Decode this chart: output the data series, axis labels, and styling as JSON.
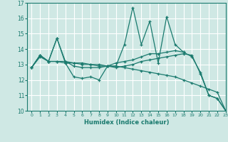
{
  "background_color": "#cfe8e4",
  "grid_color": "#ffffff",
  "line_color": "#1a7a6e",
  "xlabel": "Humidex (Indice chaleur)",
  "xlim": [
    -0.5,
    23
  ],
  "ylim": [
    10,
    17
  ],
  "xticks": [
    0,
    1,
    2,
    3,
    4,
    5,
    6,
    7,
    8,
    9,
    10,
    11,
    12,
    13,
    14,
    15,
    16,
    17,
    18,
    19,
    20,
    21,
    22,
    23
  ],
  "yticks": [
    10,
    11,
    12,
    13,
    14,
    15,
    16,
    17
  ],
  "series": [
    [
      12.8,
      13.6,
      13.2,
      14.7,
      13.1,
      12.2,
      12.1,
      12.2,
      12.0,
      12.9,
      12.9,
      14.3,
      16.7,
      14.3,
      15.8,
      13.1,
      16.1,
      14.3,
      13.8,
      null,
      null,
      null,
      null,
      null
    ],
    [
      12.8,
      13.5,
      13.2,
      13.2,
      13.2,
      12.9,
      12.8,
      12.8,
      12.8,
      12.9,
      13.1,
      13.2,
      13.3,
      13.5,
      13.7,
      13.7,
      13.8,
      13.9,
      13.8,
      13.5,
      12.5,
      11.0,
      10.8,
      10.0
    ],
    [
      12.8,
      13.6,
      13.2,
      14.7,
      13.2,
      13.1,
      13.1,
      13.0,
      13.0,
      12.9,
      12.9,
      12.8,
      12.7,
      12.6,
      12.5,
      12.4,
      12.3,
      12.2,
      12.0,
      11.8,
      11.6,
      11.4,
      11.2,
      10.0
    ],
    [
      12.8,
      13.6,
      13.2,
      13.2,
      13.1,
      13.1,
      13.0,
      13.0,
      12.9,
      12.9,
      12.8,
      12.9,
      13.0,
      13.2,
      13.3,
      13.4,
      13.5,
      13.6,
      13.7,
      13.6,
      12.4,
      11.0,
      10.8,
      10.0
    ]
  ]
}
